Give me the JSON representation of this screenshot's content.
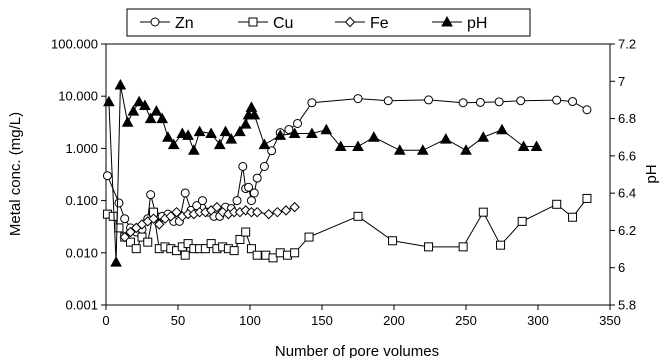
{
  "chart_data": {
    "type": "scatter",
    "xlabel": "Number of pore volumes",
    "ylabel_left": "Metal conc. (mg/L)",
    "ylabel_right": "pH",
    "xlim": [
      0,
      350
    ],
    "ylim_left": [
      0.001,
      100
    ],
    "ylim_right": [
      5.8,
      7.2
    ],
    "left_scale": "log",
    "x_ticks": [
      "0",
      "50",
      "100",
      "150",
      "200",
      "250",
      "300",
      "350"
    ],
    "y_left_ticks": [
      "0.001",
      "0.010",
      "0.100",
      "1.000",
      "10.000",
      "100.000"
    ],
    "y_right_ticks": [
      "5.8",
      "6",
      "6.2",
      "6.4",
      "6.6",
      "6.8",
      "7",
      "7.2"
    ],
    "legend_position": "top",
    "grid": false,
    "series": [
      {
        "name": "Zn",
        "axis": "left",
        "marker": "circle-open",
        "x": [
          1,
          9,
          13,
          17,
          21,
          25,
          29,
          31,
          35,
          39,
          43,
          47,
          51,
          55,
          59,
          63,
          67,
          71,
          75,
          79,
          83,
          87,
          91,
          95,
          97,
          99,
          101,
          103,
          105,
          110,
          115,
          121,
          127,
          133,
          143,
          175,
          196,
          224,
          248,
          260,
          273,
          288,
          313,
          324,
          334
        ],
        "y": [
          0.3,
          0.09,
          0.045,
          0.03,
          0.025,
          0.028,
          0.045,
          0.13,
          0.05,
          0.05,
          0.055,
          0.04,
          0.04,
          0.14,
          0.065,
          0.08,
          0.1,
          0.06,
          0.05,
          0.05,
          0.075,
          0.07,
          0.1,
          0.45,
          0.17,
          0.18,
          0.1,
          0.14,
          0.27,
          0.45,
          0.9,
          2.0,
          2.3,
          3.0,
          7.5,
          9.0,
          8.2,
          8.5,
          7.5,
          7.6,
          7.8,
          8.2,
          8.4,
          7.9,
          5.5
        ]
      },
      {
        "name": "Cu",
        "axis": "left",
        "marker": "square-open",
        "x": [
          1,
          5,
          9,
          13,
          17,
          21,
          25,
          29,
          33,
          37,
          41,
          45,
          49,
          53,
          55,
          57,
          61,
          65,
          69,
          73,
          77,
          81,
          85,
          89,
          93,
          97,
          101,
          105,
          111,
          116,
          121,
          126,
          131,
          141,
          175,
          199,
          224,
          248,
          262,
          274,
          289,
          313,
          324,
          334
        ],
        "y": [
          0.055,
          0.05,
          0.03,
          0.02,
          0.016,
          0.012,
          0.02,
          0.016,
          0.06,
          0.012,
          0.013,
          0.012,
          0.011,
          0.013,
          0.009,
          0.015,
          0.012,
          0.012,
          0.012,
          0.015,
          0.012,
          0.013,
          0.012,
          0.011,
          0.018,
          0.025,
          0.012,
          0.009,
          0.009,
          0.008,
          0.01,
          0.009,
          0.01,
          0.02,
          0.05,
          0.017,
          0.013,
          0.013,
          0.06,
          0.014,
          0.04,
          0.085,
          0.048,
          0.11
        ]
      },
      {
        "name": "Fe",
        "axis": "left",
        "marker": "diamond-open",
        "x": [
          13,
          17,
          21,
          25,
          29,
          33,
          37,
          41,
          45,
          49,
          53,
          57,
          61,
          65,
          69,
          73,
          77,
          81,
          85,
          89,
          93,
          97,
          101,
          105,
          113,
          119,
          125,
          131
        ],
        "y": [
          0.02,
          0.025,
          0.03,
          0.035,
          0.04,
          0.045,
          0.035,
          0.045,
          0.05,
          0.06,
          0.05,
          0.055,
          0.055,
          0.06,
          0.06,
          0.065,
          0.075,
          0.06,
          0.055,
          0.06,
          0.06,
          0.065,
          0.06,
          0.06,
          0.055,
          0.06,
          0.065,
          0.075
        ]
      },
      {
        "name": "pH",
        "axis": "right",
        "marker": "triangle-filled",
        "x": [
          2,
          7,
          10,
          15,
          19,
          23,
          27,
          31,
          35,
          39,
          43,
          47,
          53,
          57,
          61,
          65,
          73,
          79,
          83,
          87,
          93,
          97,
          99,
          101,
          103,
          110,
          121,
          131,
          143,
          153,
          163,
          175,
          186,
          204,
          220,
          236,
          250,
          262,
          275,
          290,
          299
        ],
        "y": [
          6.89,
          6.03,
          6.98,
          6.78,
          6.84,
          6.89,
          6.87,
          6.8,
          6.84,
          6.8,
          6.7,
          6.66,
          6.72,
          6.71,
          6.63,
          6.73,
          6.72,
          6.66,
          6.73,
          6.69,
          6.73,
          6.77,
          6.82,
          6.86,
          6.82,
          6.66,
          6.71,
          6.72,
          6.72,
          6.74,
          6.65,
          6.65,
          6.7,
          6.63,
          6.63,
          6.69,
          6.63,
          6.7,
          6.74,
          6.65,
          6.65
        ]
      }
    ]
  }
}
